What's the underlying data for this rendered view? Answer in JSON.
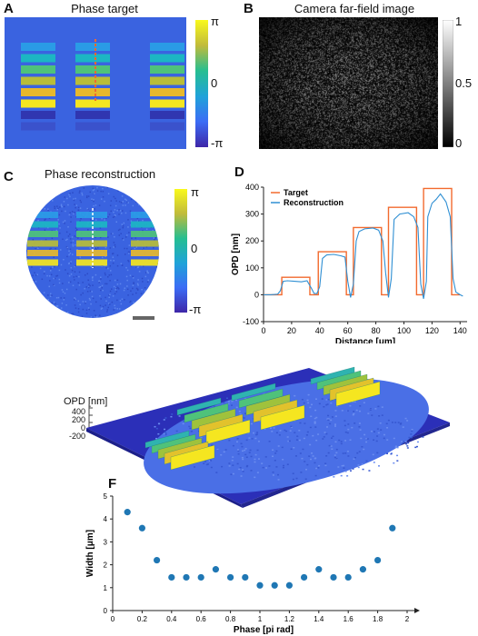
{
  "panels": {
    "A": {
      "letter": "A",
      "title": "Phase target",
      "colorbar": {
        "top": "π",
        "mid": "0",
        "bottom": "-π"
      }
    },
    "B": {
      "letter": "B",
      "title": "Camera far-field image",
      "colorbar": {
        "top": "1",
        "mid": "0.5",
        "bottom": "0"
      }
    },
    "C": {
      "letter": "C",
      "title": "Phase reconstruction",
      "colorbar": {
        "top": "π",
        "mid": "0",
        "bottom": "-π"
      }
    },
    "D": {
      "letter": "D"
    },
    "E": {
      "letter": "E",
      "zlabel": "OPD [nm]",
      "zticks": [
        "400",
        "200",
        "0",
        "-200"
      ]
    },
    "F": {
      "letter": "F"
    }
  },
  "chart_data": [
    {
      "type": "line",
      "panel": "D",
      "xlabel": "Distance [μm]",
      "ylabel": "OPD [nm]",
      "xlim": [
        0,
        145
      ],
      "ylim": [
        -100,
        400
      ],
      "xticks": [
        "0",
        "20",
        "40",
        "60",
        "80",
        "100",
        "120",
        "140"
      ],
      "yticks": [
        "-100",
        "0",
        "100",
        "200",
        "300",
        "400"
      ],
      "legend": "top-left",
      "series": [
        {
          "name": "Target",
          "color": "#f26a2e",
          "x": [
            0,
            13,
            13,
            33,
            33,
            39,
            39,
            59,
            59,
            64,
            64,
            84,
            84,
            89,
            89,
            109,
            109,
            114,
            114,
            134,
            134,
            140
          ],
          "y": [
            0,
            0,
            65,
            65,
            0,
            0,
            160,
            160,
            0,
            0,
            250,
            250,
            0,
            0,
            325,
            325,
            0,
            0,
            395,
            395,
            0,
            0
          ]
        },
        {
          "name": "Reconstruction",
          "color": "#2f8fd3",
          "x": [
            0,
            5,
            10,
            12,
            14,
            17,
            22,
            27,
            31,
            34,
            36,
            38,
            40,
            42,
            45,
            50,
            55,
            58,
            60,
            62,
            64,
            66,
            68,
            72,
            78,
            82,
            85,
            87,
            89,
            91,
            93,
            97,
            103,
            107,
            110,
            112,
            114,
            116,
            117,
            120,
            123,
            126,
            130,
            133,
            135,
            137,
            140,
            142
          ],
          "y": [
            0,
            0,
            2,
            15,
            50,
            52,
            50,
            48,
            52,
            25,
            5,
            4,
            30,
            135,
            148,
            150,
            145,
            140,
            50,
            -10,
            40,
            200,
            235,
            245,
            248,
            240,
            200,
            80,
            -10,
            60,
            280,
            300,
            305,
            290,
            250,
            40,
            -15,
            50,
            290,
            340,
            355,
            375,
            345,
            290,
            60,
            10,
            0,
            -5
          ]
        }
      ]
    },
    {
      "type": "scatter",
      "panel": "F",
      "xlabel": "Phase [pi rad]",
      "ylabel": "Width [μm]",
      "xlim": [
        0,
        2
      ],
      "ylim": [
        0,
        5
      ],
      "xticks": [
        "0",
        "0.2",
        "0.4",
        "0.6",
        "0.8",
        "1",
        "1.2",
        "1.4",
        "1.6",
        "1.8",
        "2"
      ],
      "yticks": [
        "0",
        "1",
        "2",
        "3",
        "4",
        "5"
      ],
      "color": "#1f77b4",
      "series": [
        {
          "x": [
            0.1,
            0.2,
            0.3,
            0.4,
            0.5,
            0.6,
            0.7,
            0.8,
            0.9,
            1.0,
            1.1,
            1.2,
            1.3,
            1.4,
            1.5,
            1.6,
            1.7,
            1.8,
            1.9
          ],
          "y": [
            4.3,
            3.6,
            2.2,
            1.45,
            1.45,
            1.45,
            1.8,
            1.45,
            1.45,
            1.1,
            1.1,
            1.1,
            1.45,
            1.8,
            1.45,
            1.45,
            1.8,
            2.2,
            3.6
          ]
        }
      ]
    }
  ]
}
